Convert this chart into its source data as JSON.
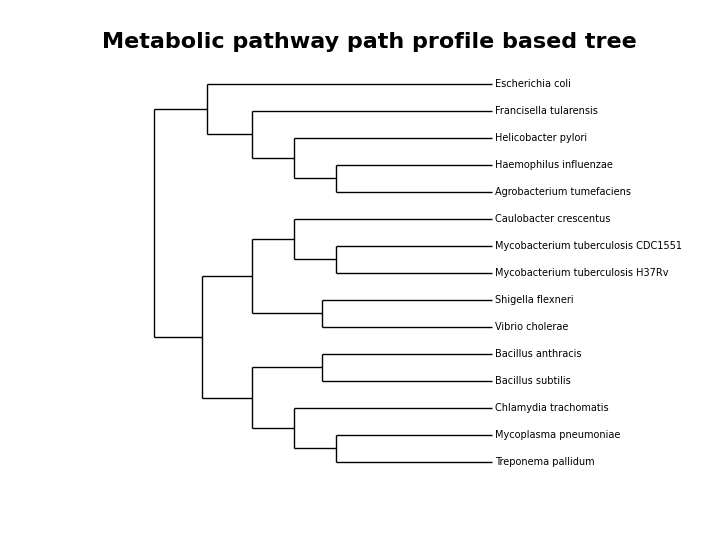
{
  "title": "Metabolic pathway path profile based tree",
  "title_fontsize": 16,
  "title_bold": true,
  "taxa": [
    "Escherichia coli",
    "Francisella tularensis",
    "Helicobacter pylori",
    "Haemophilus influenzae",
    "Agrobacterium tumefaciens",
    "Caulobacter crescentus",
    "Mycobacterium tuberculosis CDC1551",
    "Mycobacterium tuberculosis H37Rv",
    "Shigella flexneri",
    "Vibrio cholerae",
    "Bacillus anthracis",
    "Bacillus subtilis",
    "Chlamydia trachomatis",
    "Mycoplasma pneumoniae",
    "Treponema pallidum"
  ],
  "label_fontsize": 7,
  "line_color": "#000000",
  "line_width": 1.0,
  "background_color": "#ffffff",
  "fig_width": 7.2,
  "fig_height": 5.4,
  "dpi": 100
}
